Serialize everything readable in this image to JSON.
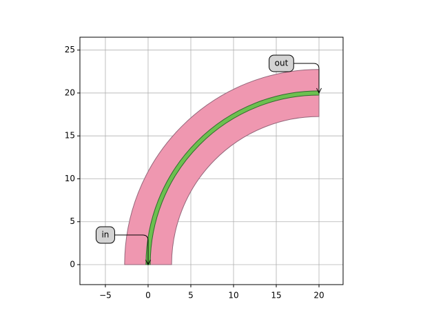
{
  "chart_data": {
    "type": "bend",
    "xlim": [
      -7.98,
      22.82
    ],
    "ylim": [
      -2.33,
      26.5
    ],
    "xticks": [
      {
        "value": -5,
        "label": "−5"
      },
      0,
      5,
      10,
      15,
      20
    ],
    "yticks": [
      0,
      5,
      10,
      15,
      20,
      25
    ],
    "grid": true,
    "shapes": [
      {
        "center": [
          20,
          0
        ],
        "radius": 20,
        "width": 5.5,
        "color": "#ef97b0",
        "edge_color": "#93667a"
      },
      {
        "center": [
          20,
          0
        ],
        "radius": 20,
        "width": 0.5,
        "color": "#6cc04f",
        "edge_color": "#2f6a2c"
      }
    ],
    "annotations": [
      {
        "text": "in",
        "xy": [
          0,
          0
        ],
        "xytext": [
          -5,
          3.45
        ]
      },
      {
        "text": "out",
        "xy": [
          20,
          20
        ],
        "xytext": [
          15.6,
          23.45
        ]
      }
    ]
  }
}
